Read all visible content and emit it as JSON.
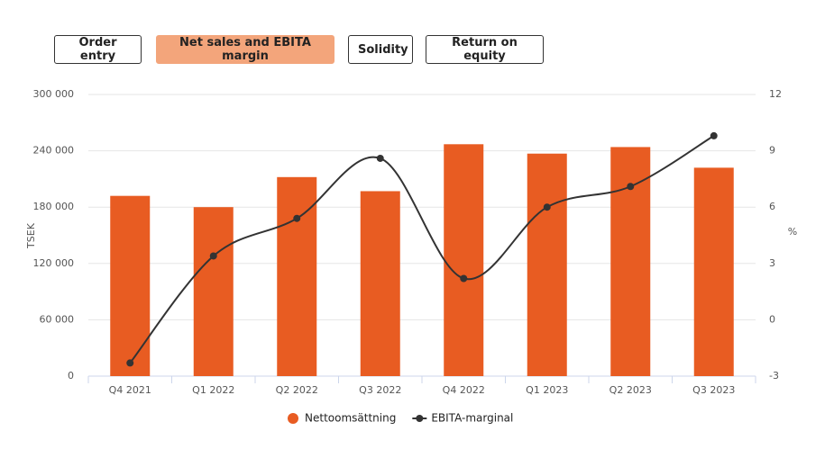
{
  "tabs": [
    "Order entry",
    "Net sales and EBITA margin",
    "Solidity",
    "Return on equity"
  ],
  "chart_data": {
    "type": "bar",
    "ylabel": "TSEK",
    "y2label": "%",
    "categories": [
      "Q4 2021",
      "Q1 2022",
      "Q2 2022",
      "Q3 2022",
      "Q4 2022",
      "Q1 2023",
      "Q2 2023",
      "Q3 2023"
    ],
    "series": [
      {
        "name": "Nettoomsättning",
        "type": "bar",
        "color": "#e85c22",
        "values": [
          192000,
          180000,
          212000,
          197000,
          247000,
          237000,
          244000,
          222000
        ]
      },
      {
        "name": "EBITA-marginal",
        "type": "line",
        "axis": "y2",
        "color": "#333333",
        "values": [
          -2.3,
          3.4,
          5.4,
          8.6,
          2.2,
          6.0,
          7.1,
          9.8
        ]
      }
    ],
    "ylim": [
      0,
      300000
    ],
    "yticks": [
      0,
      {
        "value": 60000,
        "label": "60 000"
      },
      {
        "value": 120000,
        "label": "120 000"
      },
      {
        "value": 180000,
        "label": "180 000"
      },
      {
        "value": 240000,
        "label": "240 000"
      },
      {
        "value": 300000,
        "label": "300 000"
      }
    ],
    "y2lim": [
      -3,
      12
    ],
    "y2ticks": [
      -3,
      0,
      3,
      6,
      9,
      12
    ],
    "grid": true
  }
}
